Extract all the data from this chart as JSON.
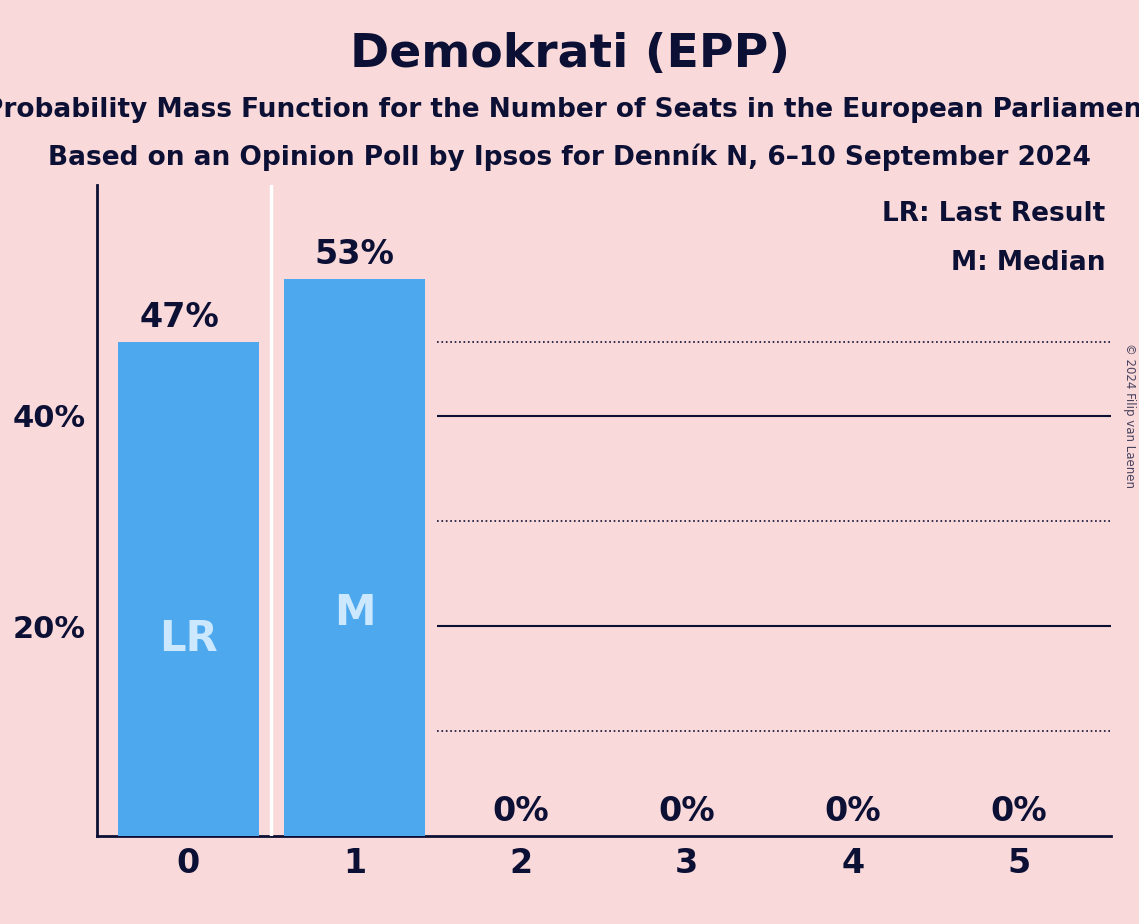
{
  "title": "Demokrati (EPP)",
  "subtitle1": "Probability Mass Function for the Number of Seats in the European Parliament",
  "subtitle2": "Based on an Opinion Poll by Ipsos for Denník N, 6–10 September 2024",
  "copyright": "© 2024 Filip van Laenen",
  "categories": [
    0,
    1,
    2,
    3,
    4,
    5
  ],
  "values": [
    0.47,
    0.53,
    0.0,
    0.0,
    0.0,
    0.0
  ],
  "bar_color": "#4DA8EE",
  "background_color": "#F9D9D9",
  "text_color": "#0D1035",
  "label_color_inside": "#CCE8FF",
  "bar_labels": [
    "LR",
    "M",
    "",
    "",
    "",
    ""
  ],
  "value_labels": [
    "47%",
    "53%",
    "0%",
    "0%",
    "0%",
    "0%"
  ],
  "ylim": [
    0,
    0.62
  ],
  "solid_gridlines": [
    0.2,
    0.4
  ],
  "dotted_gridlines": [
    0.1,
    0.3,
    0.47
  ],
  "legend_lr": "LR: Last Result",
  "legend_m": "M: Median",
  "title_fontsize": 34,
  "subtitle_fontsize": 19,
  "ylabel_fontsize": 22,
  "xlabel_fontsize": 24,
  "bar_label_fontsize": 30,
  "value_label_fontsize": 24,
  "legend_fontsize": 19
}
